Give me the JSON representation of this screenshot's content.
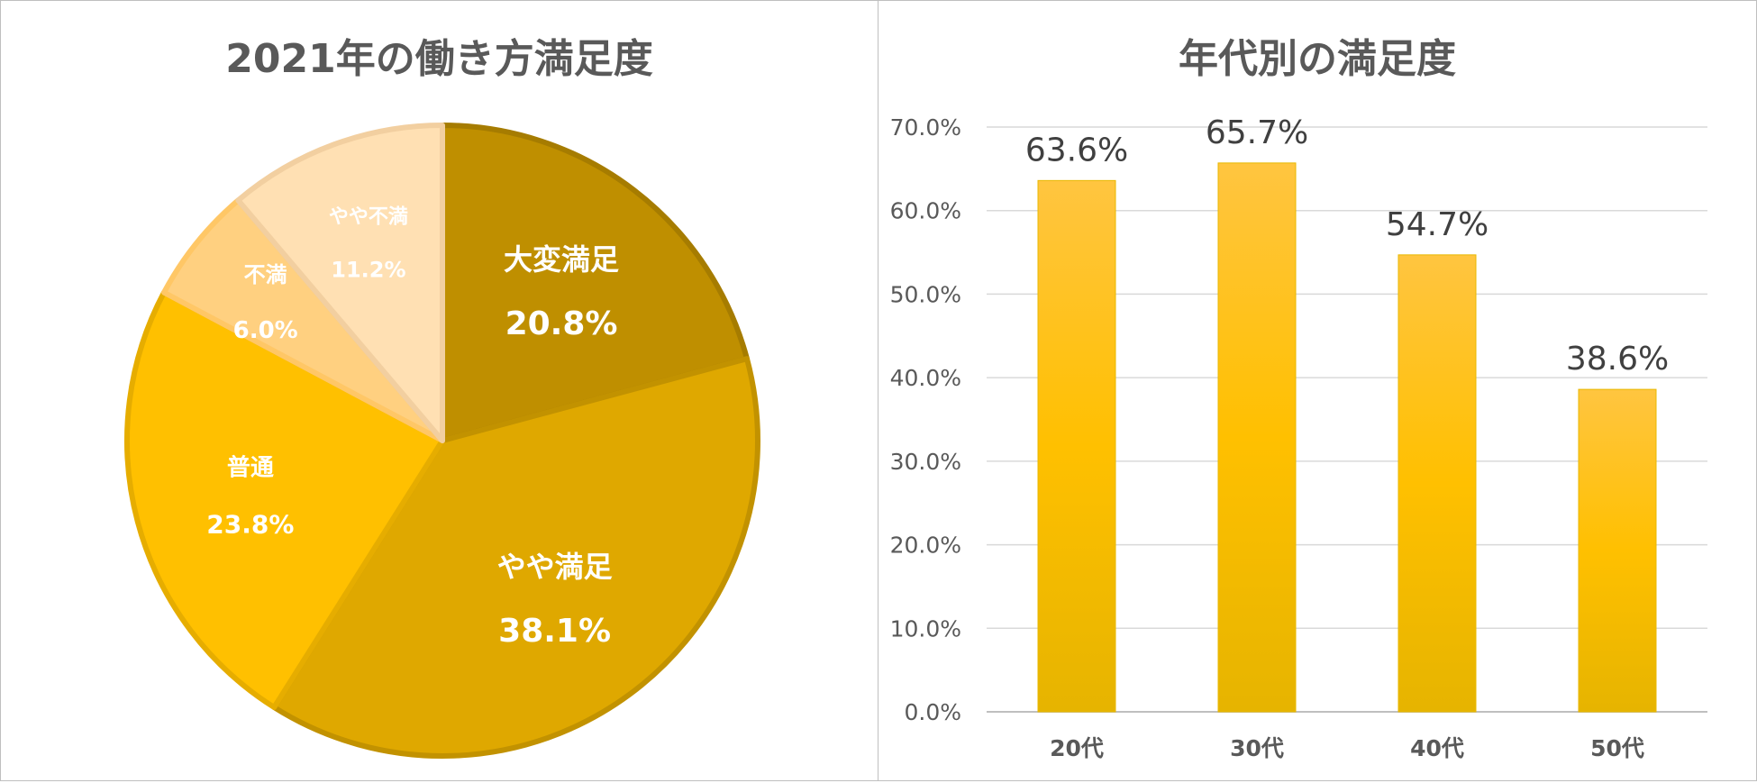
{
  "chart_data": [
    {
      "type": "pie",
      "title": "2021年の働き方満足度",
      "slices": [
        {
          "label": "大変満足",
          "value": 20.8,
          "value_label": "20.8%",
          "color": "#bf8f00"
        },
        {
          "label": "やや満足",
          "value": 38.1,
          "value_label": "38.1%",
          "color": "#dfa800"
        },
        {
          "label": "普通",
          "value": 23.8,
          "value_label": "23.8%",
          "color": "#ffc000"
        },
        {
          "label": "不満",
          "value": 6.0,
          "value_label": "6.0%",
          "color": "#ffd080"
        },
        {
          "label": "やや不満",
          "value": 11.2,
          "value_label": "11.2%",
          "color": "#ffe0b3"
        }
      ]
    },
    {
      "type": "bar",
      "title": "年代別の満足度",
      "categories": [
        "20代",
        "30代",
        "40代",
        "50代"
      ],
      "values": [
        63.6,
        65.7,
        54.7,
        38.6
      ],
      "value_labels": [
        "63.6%",
        "65.7%",
        "54.7%",
        "38.6%"
      ],
      "ylim": [
        0,
        70
      ],
      "yticks": [
        "0.0%",
        "10.0%",
        "20.0%",
        "30.0%",
        "40.0%",
        "50.0%",
        "60.0%",
        "70.0%"
      ],
      "grid": true,
      "bar_color": "#ffc000"
    }
  ]
}
